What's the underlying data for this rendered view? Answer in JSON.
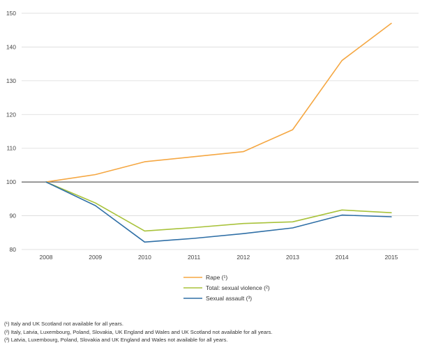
{
  "chart_data": {
    "type": "line",
    "title": "",
    "xlabel": "",
    "ylabel": "",
    "categories": [
      "2008",
      "2009",
      "2010",
      "2011",
      "2012",
      "2013",
      "2014",
      "2015"
    ],
    "ylim": [
      80,
      150
    ],
    "yticks": [
      80,
      90,
      100,
      110,
      120,
      130,
      140,
      150
    ],
    "grid": true,
    "legend_position": "bottom",
    "series": [
      {
        "name": "Rape (¹)",
        "color": "#f5a742",
        "values": [
          100,
          102.2,
          106,
          107.5,
          109,
          115.5,
          136,
          147
        ]
      },
      {
        "name": "Total: sexual violence (²)",
        "color": "#a8c23a",
        "values": [
          100,
          93.8,
          85.5,
          86.5,
          87.7,
          88.2,
          91.7,
          90.9
        ]
      },
      {
        "name": "Sexual assault (³)",
        "color": "#2f6fa6",
        "values": [
          100,
          93,
          82.2,
          83.3,
          84.7,
          86.4,
          90.2,
          89.7
        ]
      }
    ]
  },
  "footnotes": [
    "(¹) Italy and UK Scotland not available for all years.",
    "(²) Italy, Latvia, Luxembourg, Poland, Slovakia, UK England and Wales and UK Scotland not available for all years.",
    "(³) Latvia, Luxembourg, Poland, Slovakia and UK England and Wales not available for all years."
  ]
}
